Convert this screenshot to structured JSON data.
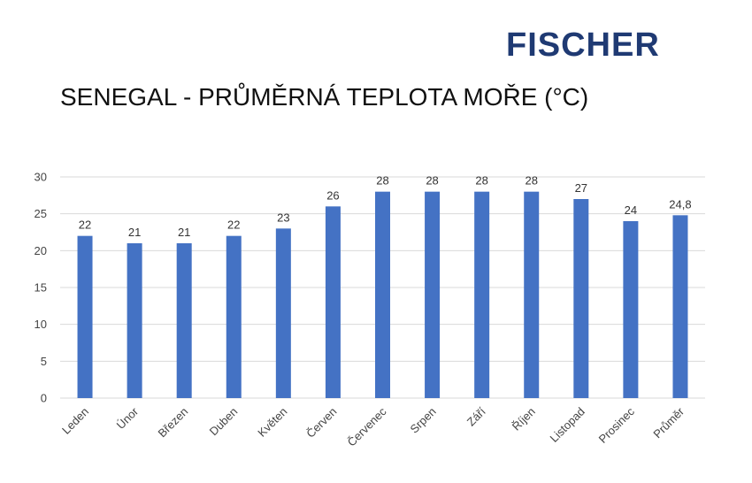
{
  "brand": {
    "logo_text": "FISCHER",
    "logo_color": "#1f3a73"
  },
  "chart_data": {
    "type": "bar",
    "title": "SENEGAL - PRŮMĚRNÁ TEPLOTA MOŘE (°C)",
    "categories": [
      "Leden",
      "Únor",
      "Březen",
      "Duben",
      "Květen",
      "Červen",
      "Červenec",
      "Srpen",
      "Září",
      "Říjen",
      "Listopad",
      "Prosinec",
      "Průměr"
    ],
    "values": [
      22,
      21,
      21,
      22,
      23,
      26,
      28,
      28,
      28,
      28,
      27,
      24,
      24.8
    ],
    "data_labels": [
      "22",
      "21",
      "21",
      "22",
      "23",
      "26",
      "28",
      "28",
      "28",
      "28",
      "27",
      "24",
      "24,8"
    ],
    "xlabel": "",
    "ylabel": "",
    "ylim": [
      0,
      30
    ],
    "yticks": [
      0,
      5,
      10,
      15,
      20,
      25,
      30
    ],
    "grid": true,
    "bar_color": "#4472c4",
    "grid_color": "#d9d9d9"
  }
}
